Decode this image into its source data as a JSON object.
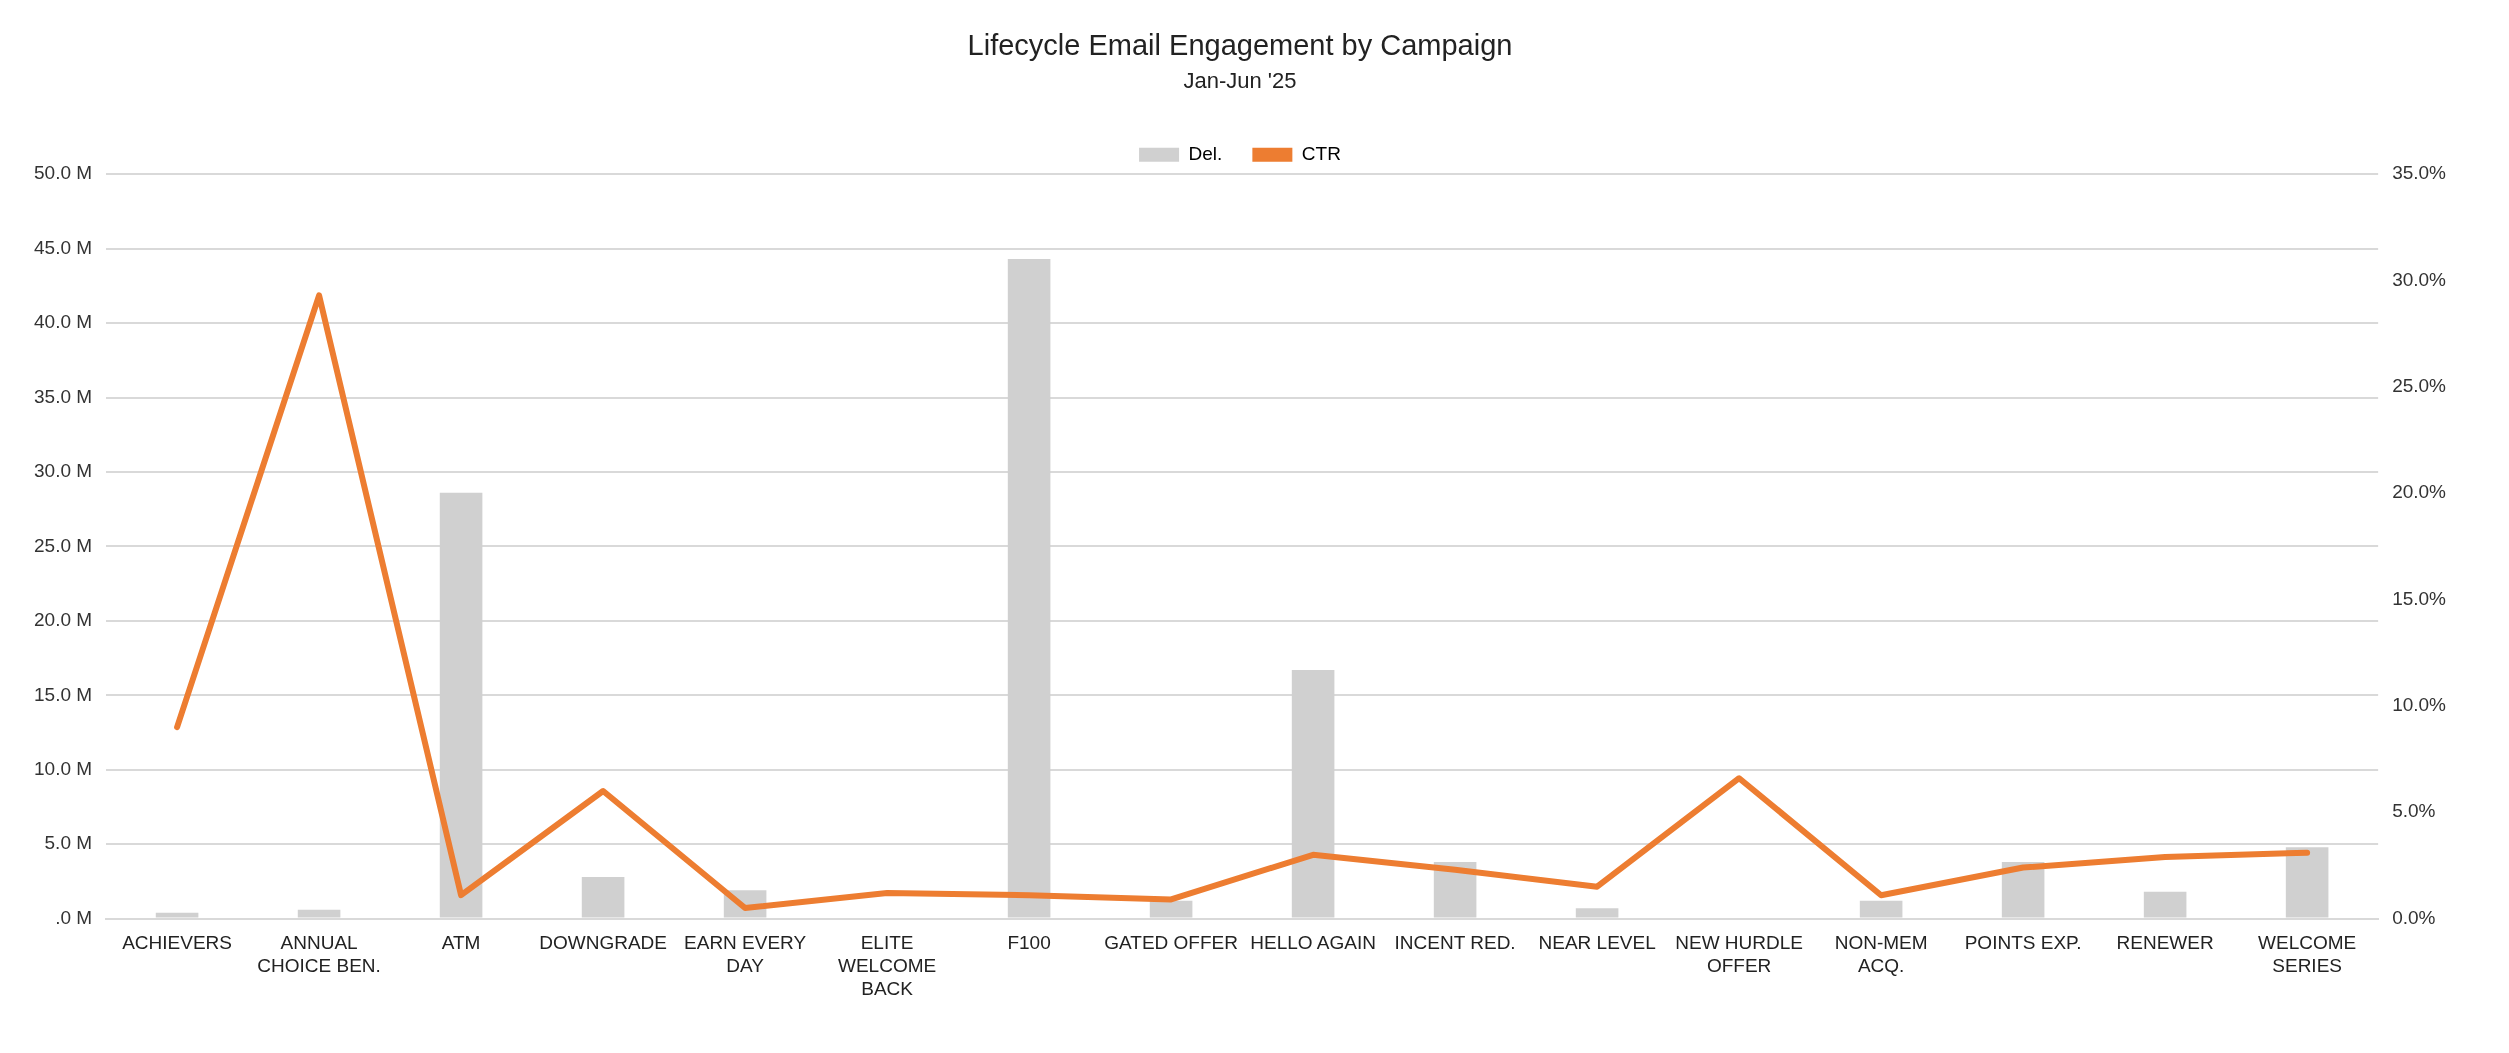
{
  "chart_data": {
    "type": "bar",
    "title": "Lifecycle Email Engagement by Campaign",
    "subtitle": "Jan-Jun '25",
    "categories": [
      "ACHIEVERS",
      "ANNUAL CHOICE BEN.",
      "ATM",
      "DOWNGRADE",
      "EARN EVERY DAY",
      "ELITE WELCOME BACK",
      "F100",
      "GATED OFFER",
      "HELLO AGAIN",
      "INCENT RED.",
      "NEAR LEVEL",
      "NEW HURDLE OFFER",
      "NON-MEM ACQ.",
      "POINTS EXP.",
      "RENEWER",
      "WELCOME SERIES"
    ],
    "series": [
      {
        "name": "Del.",
        "color": "#d0d0d0",
        "values": [
          0.4,
          0.6,
          28.6,
          2.8,
          1.9,
          0,
          44.3,
          1.2,
          16.7,
          3.8,
          0.7,
          0,
          1.2,
          3.8,
          1.8,
          4.8
        ]
      },
      {
        "name": "CTR",
        "type": "line",
        "axis": "y2",
        "color": "#ed7d31",
        "values": [
          9.0,
          29.3,
          1.1,
          6.0,
          0.5,
          1.2,
          1.1,
          0.9,
          3.0,
          2.3,
          1.5,
          6.6,
          1.1,
          2.4,
          2.9,
          3.1
        ]
      }
    ],
    "ylim": [
      0,
      50
    ],
    "yticks": [
      {
        "value": 0,
        "label": ".0 M"
      },
      {
        "value": 5,
        "label": "5.0 M"
      },
      {
        "value": 10,
        "label": "10.0 M"
      },
      {
        "value": 15,
        "label": "15.0 M"
      },
      {
        "value": 20,
        "label": "20.0 M"
      },
      {
        "value": 25,
        "label": "25.0 M"
      },
      {
        "value": 30,
        "label": "30.0 M"
      },
      {
        "value": 35,
        "label": "35.0 M"
      },
      {
        "value": 40,
        "label": "40.0 M"
      },
      {
        "value": 45,
        "label": "45.0 M"
      },
      {
        "value": 50,
        "label": "50.0 M"
      }
    ],
    "y2lim": [
      0,
      35
    ],
    "y2ticks": [
      {
        "value": 0,
        "label": "0.0%"
      },
      {
        "value": 5,
        "label": "5.0%"
      },
      {
        "value": 10,
        "label": "10.0%"
      },
      {
        "value": 15,
        "label": "15.0%"
      },
      {
        "value": 20,
        "label": "20.0%"
      },
      {
        "value": 25,
        "label": "25.0%"
      },
      {
        "value": 30,
        "label": "30.0%"
      },
      {
        "value": 35,
        "label": "35.0%"
      }
    ],
    "grid": "y",
    "legend": "top",
    "marker": "none",
    "line_style": "solid"
  }
}
